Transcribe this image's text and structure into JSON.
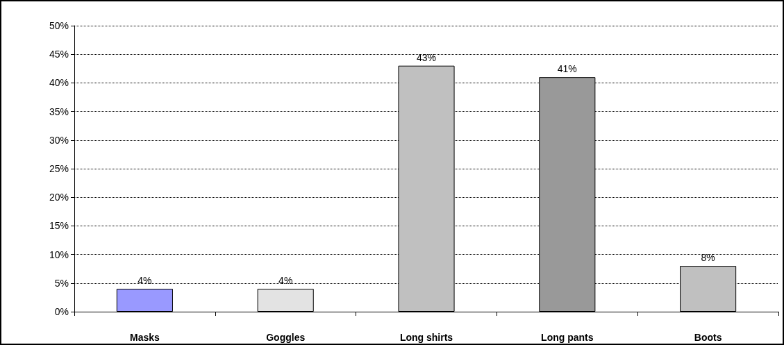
{
  "chart_data": {
    "type": "bar",
    "categories": [
      "Masks",
      "Goggles",
      "Long shirts",
      "Long pants",
      "Boots"
    ],
    "values": [
      4,
      4,
      43,
      41,
      8
    ],
    "colors": [
      "#9999ff",
      "#e3e3e3",
      "#c0c0c0",
      "#999999",
      "#c0c0c0"
    ],
    "value_labels": [
      "4%",
      "4%",
      "43%",
      "41%",
      "8%"
    ],
    "ylim": [
      0,
      50
    ],
    "yticks": [
      {
        "value": 0,
        "label": "0%"
      },
      {
        "value": 5,
        "label": "5%"
      },
      {
        "value": 10,
        "label": "10%"
      },
      {
        "value": 15,
        "label": "15%"
      },
      {
        "value": 20,
        "label": "20%"
      },
      {
        "value": 25,
        "label": "25%"
      },
      {
        "value": 30,
        "label": "30%"
      },
      {
        "value": 35,
        "label": "35%"
      },
      {
        "value": 40,
        "label": "40%"
      },
      {
        "value": 45,
        "label": "45%"
      },
      {
        "value": 50,
        "label": "50%"
      }
    ],
    "grid": "y",
    "line_style": "dotted"
  }
}
